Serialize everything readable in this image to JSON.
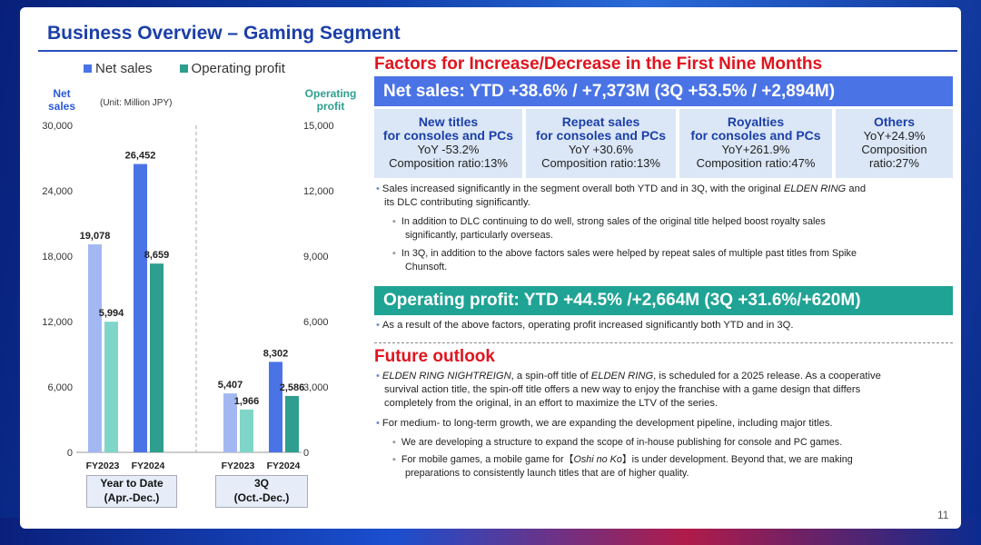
{
  "title": "Business Overview – Gaming Segment",
  "colors": {
    "net_sales_light": "#a3b8f2",
    "net_sales": "#4a73e6",
    "op_profit_light": "#7fd6c8",
    "op_profit": "#2e9e8e",
    "red": "#e0141e",
    "navy": "#1b3fa8"
  },
  "legend": {
    "net_sales": "Net sales",
    "operating_profit": "Operating profit"
  },
  "left_axis_label": "Net sales",
  "right_axis_label": "Operating profit",
  "unit": "(Unit: Million JPY)",
  "chart_data": {
    "type": "bar",
    "groups": [
      {
        "label": "Year to Date (Apr.-Dec.)",
        "line1": "Year to Date",
        "line2": "(Apr.-Dec.)",
        "categories": [
          "FY2023",
          "FY2024"
        ],
        "net_sales": [
          19078,
          26452
        ],
        "operating_profit": [
          5994,
          8659
        ]
      },
      {
        "label": "3Q (Oct.-Dec.)",
        "line1": "3Q",
        "line2": "(Oct.-Dec.)",
        "categories": [
          "FY2023",
          "FY2024"
        ],
        "net_sales": [
          5407,
          8302
        ],
        "operating_profit": [
          1966,
          2586
        ]
      }
    ],
    "net_sales_labels": [
      "19,078",
      "26,452",
      "5,407",
      "8,302"
    ],
    "operating_profit_labels": [
      "5,994",
      "8,659",
      "1,966",
      "2,586"
    ],
    "ylim_left": [
      0,
      30000
    ],
    "ylim_right": [
      0,
      15000
    ],
    "left_ticks": [
      "30,000",
      "24,000",
      "18,000",
      "12,000",
      "6,000",
      "0"
    ],
    "right_ticks": [
      "15,000",
      "12,000",
      "9,000",
      "6,000",
      "3,000",
      "0"
    ]
  },
  "factors": {
    "heading": "Factors for Increase/Decrease in the First Nine Months",
    "net_sales_band": "Net sales: YTD +38.6% / +7,373M (3Q +53.5% / +2,894M)",
    "boxes": [
      {
        "h1": "New titles",
        "h2": "for consoles and PCs",
        "l1": "YoY -53.2%",
        "l2": "Composition ratio:13%"
      },
      {
        "h1": "Repeat sales",
        "h2": "for consoles and PCs",
        "l1": "YoY +30.6%",
        "l2": "Composition ratio:13%"
      },
      {
        "h1": "Royalties",
        "h2": "for consoles and PCs",
        "l1": "YoY+261.9%",
        "l2": "Composition ratio:47%"
      },
      {
        "h1": "Others",
        "h2": "YoY+24.9%",
        "l1": "Composition",
        "l2": "ratio:27%"
      }
    ],
    "bullet1a": "Sales increased significantly in the segment overall both YTD and in 3Q, with the original ",
    "bullet1_em": "ELDEN RING",
    "bullet1b": " and",
    "bullet1c": "its DLC contributing significantly.",
    "sub1a": "In addition to DLC continuing to do well, strong sales of the original title helped boost royalty sales",
    "sub1b": "significantly, particularly overseas.",
    "sub2a": "In 3Q, in addition to the above factors sales were helped by repeat sales of multiple past titles from Spike",
    "sub2b": "Chunsoft.",
    "op_band": "Operating profit: YTD +44.5% /+2,664M (3Q +31.6%/+620M)",
    "op_bullet": "As a result of the above factors, operating profit increased significantly both YTD and in 3Q."
  },
  "outlook": {
    "heading": "Future outlook",
    "b1_em": "ELDEN RING NIGHTREIGN",
    "b1a": ", a spin-off title of ",
    "b1_em2": "ELDEN RING",
    "b1b": ", is scheduled for a 2025 release. As a cooperative",
    "b1c": "survival action title, the spin-off title offers a new way to enjoy the franchise with a game design that differs",
    "b1d": "completely from the original, in an effort to maximize the LTV of the series.",
    "b2": "For medium- to long-term growth, we are expanding the development pipeline, including major titles.",
    "s1": "We are developing a structure to expand the scope of in-house publishing for console and PC games.",
    "s2a": "For mobile games, a mobile game for【",
    "s2_em": "Oshi no Ko",
    "s2b": "】is under development. Beyond that, we are making",
    "s2c": "preparations to consistently launch titles that are of higher quality."
  },
  "page_number": "11"
}
